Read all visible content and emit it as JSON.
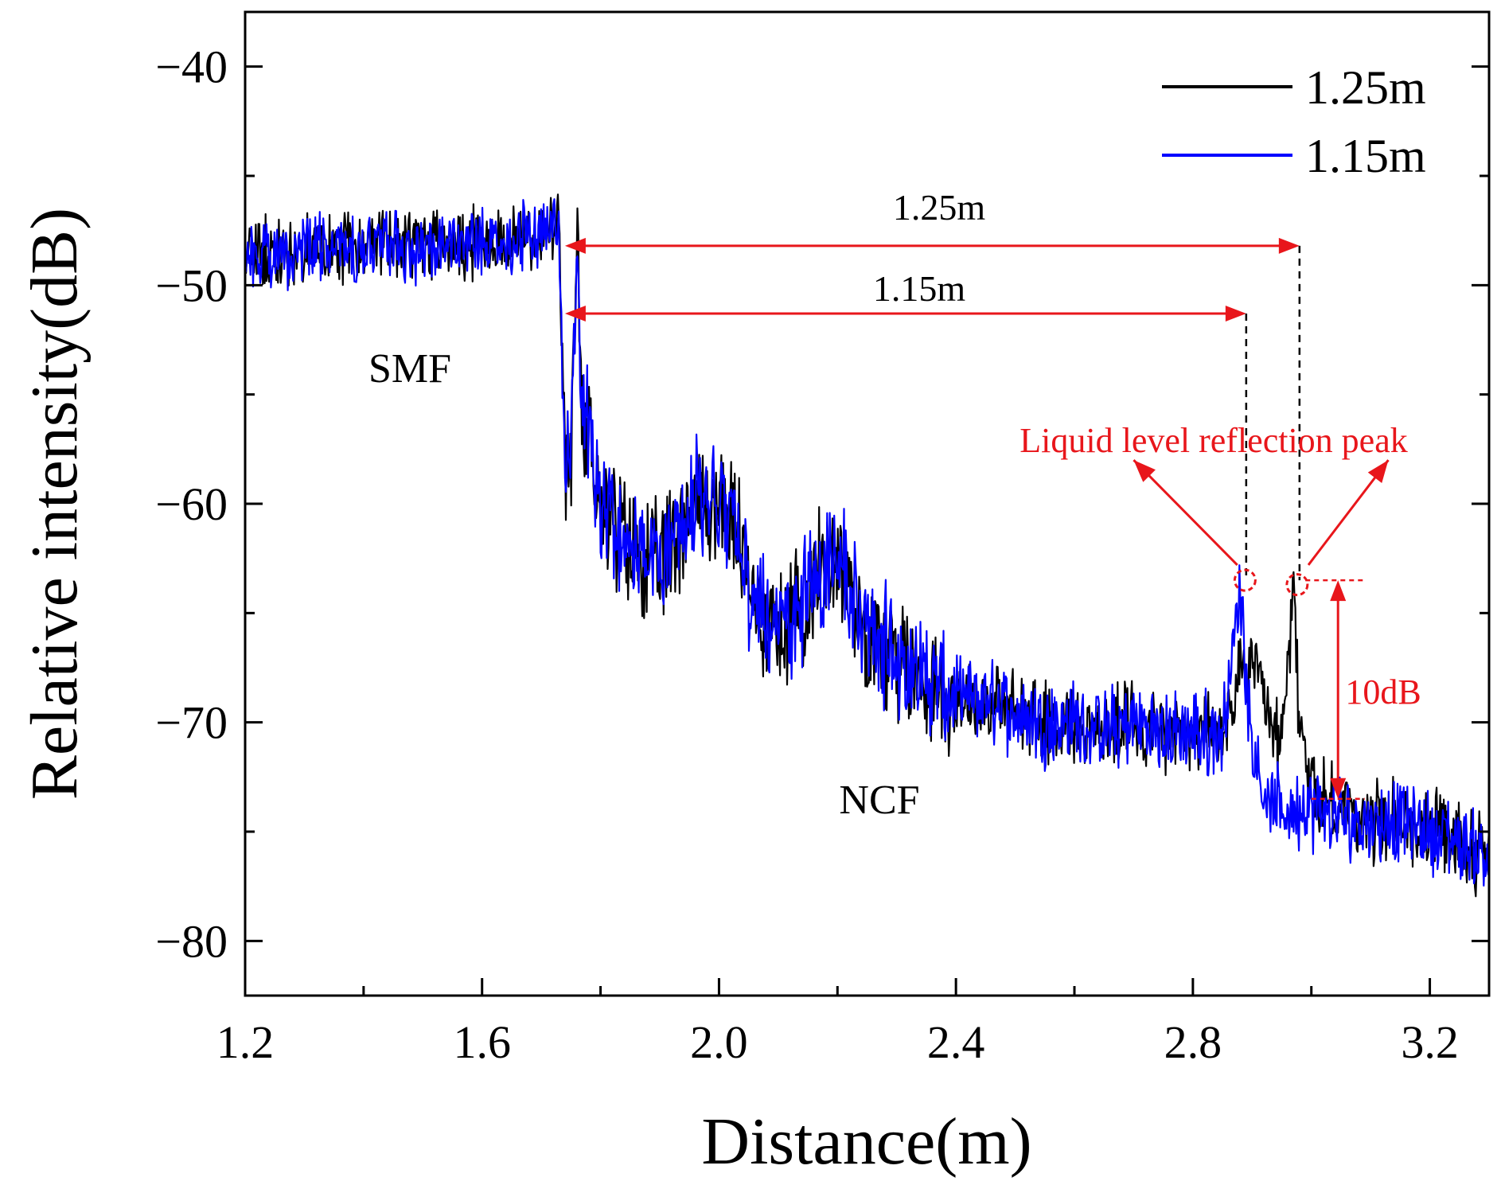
{
  "chart_data": {
    "type": "line",
    "title": "",
    "xlabel": "Distance(m)",
    "ylabel": "Relative intensity(dB)",
    "xlim": [
      1.2,
      3.3
    ],
    "ylim": [
      -82.5,
      -37.5
    ],
    "xticks": [
      1.2,
      1.6,
      2.0,
      2.4,
      2.8,
      3.2
    ],
    "xtick_labels": [
      "1.2",
      "1.6",
      "2.0",
      "2.4",
      "2.8",
      "3.2"
    ],
    "yticks": [
      -40,
      -50,
      -60,
      -70,
      -80
    ],
    "ytick_labels": [
      "−40",
      "−50",
      "−60",
      "−70",
      "−80"
    ],
    "legend_position": "top-right",
    "series": [
      {
        "name": "1.25m",
        "color": "#000000",
        "x": [
          1.2,
          1.3,
          1.4,
          1.5,
          1.6,
          1.7,
          1.73,
          1.74,
          1.75,
          1.76,
          1.77,
          1.78,
          1.8,
          1.85,
          1.9,
          1.95,
          2.0,
          2.03,
          2.05,
          2.1,
          2.15,
          2.2,
          2.25,
          2.3,
          2.35,
          2.4,
          2.45,
          2.5,
          2.55,
          2.6,
          2.65,
          2.7,
          2.75,
          2.8,
          2.85,
          2.88,
          2.9,
          2.93,
          2.95,
          2.97,
          2.98,
          3.0,
          3.05,
          3.1,
          3.15,
          3.2,
          3.25,
          3.3
        ],
        "y": [
          -48.5,
          -48.5,
          -48,
          -48.2,
          -48,
          -47.8,
          -47.5,
          -58,
          -60,
          -47,
          -57,
          -56,
          -60,
          -62,
          -63,
          -60,
          -60,
          -61,
          -64,
          -66,
          -64,
          -62,
          -66,
          -67,
          -68,
          -69,
          -69,
          -69.5,
          -70,
          -70,
          -70.5,
          -70,
          -70.5,
          -70.5,
          -70.5,
          -68,
          -67,
          -70.5,
          -71,
          -64,
          -70,
          -73,
          -74,
          -74.5,
          -74.5,
          -75,
          -75.5,
          -76
        ]
      },
      {
        "name": "1.15m",
        "color": "#0000ff",
        "x": [
          1.2,
          1.3,
          1.4,
          1.5,
          1.6,
          1.7,
          1.73,
          1.74,
          1.75,
          1.76,
          1.77,
          1.78,
          1.8,
          1.85,
          1.9,
          1.95,
          2.0,
          2.03,
          2.05,
          2.1,
          2.15,
          2.2,
          2.25,
          2.3,
          2.35,
          2.4,
          2.45,
          2.5,
          2.55,
          2.6,
          2.65,
          2.7,
          2.75,
          2.8,
          2.85,
          2.88,
          2.9,
          2.93,
          2.95,
          2.97,
          2.98,
          3.0,
          3.05,
          3.1,
          3.15,
          3.2,
          3.25,
          3.3
        ],
        "y": [
          -48.5,
          -48.5,
          -48,
          -48.2,
          -48,
          -47.8,
          -47.5,
          -58,
          -57,
          -48,
          -56,
          -57,
          -60,
          -62,
          -63,
          -60,
          -60,
          -61,
          -64,
          -66,
          -64,
          -62,
          -66,
          -67,
          -68,
          -69,
          -69,
          -69.5,
          -70,
          -70,
          -70.5,
          -70,
          -70.5,
          -70.5,
          -70.5,
          -64,
          -71,
          -74,
          -74,
          -74,
          -74,
          -74,
          -74.5,
          -74.5,
          -74.5,
          -75,
          -75.5,
          -76
        ]
      }
    ],
    "annotations": {
      "region_left": "SMF",
      "region_right": "NCF",
      "measure_long": "1.25m",
      "measure_short": "1.15m",
      "peak_label": "Liquid level reflection peak",
      "delta_label": "10dB"
    }
  }
}
